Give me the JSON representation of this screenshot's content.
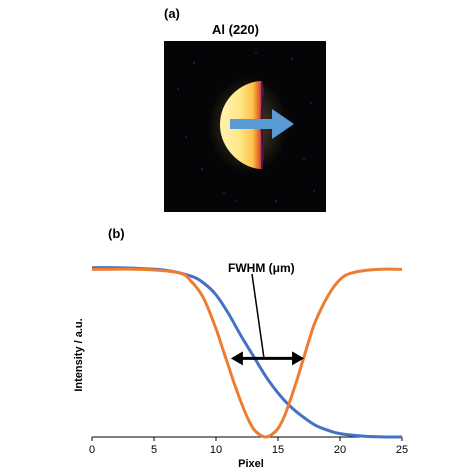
{
  "figure": {
    "panel_a_label": "(a)",
    "panel_b_label": "(b)",
    "image_title": "Al (220)"
  },
  "colors": {
    "orange": "#ed7d31",
    "blue": "#4472c4",
    "arrow_blue": "#5b9bd5",
    "image_bg": "#050507"
  },
  "chart_data": {
    "type": "line",
    "xlabel": "Pixel",
    "ylabel": "Intensity / a.u.",
    "xlim": [
      0,
      25
    ],
    "ylim": [
      0,
      1
    ],
    "xticks": [
      0,
      5,
      10,
      15,
      20,
      25
    ],
    "annotation": "FWHM (μm)",
    "series": [
      {
        "color": "#4472c4",
        "x": [
          0,
          2,
          4,
          6,
          8,
          9,
          10,
          11,
          12,
          13,
          14,
          15,
          16,
          17,
          18,
          19,
          20,
          22,
          24,
          25
        ],
        "y": [
          1.0,
          1.0,
          0.995,
          0.985,
          0.95,
          0.91,
          0.84,
          0.73,
          0.6,
          0.48,
          0.36,
          0.26,
          0.18,
          0.12,
          0.07,
          0.04,
          0.02,
          0.005,
          0.0,
          0.0
        ]
      },
      {
        "color": "#ed7d31",
        "x": [
          0,
          4,
          7,
          8,
          9,
          10,
          10.5,
          11,
          11.5,
          12,
          12.5,
          13,
          13.5,
          14,
          14.5,
          15,
          15.5,
          16,
          16.5,
          17,
          17.5,
          18,
          19,
          20,
          21,
          23,
          25
        ],
        "y": [
          0.99,
          0.99,
          0.97,
          0.92,
          0.82,
          0.64,
          0.53,
          0.42,
          0.31,
          0.21,
          0.12,
          0.05,
          0.015,
          0.0,
          0.015,
          0.05,
          0.12,
          0.22,
          0.33,
          0.45,
          0.57,
          0.68,
          0.83,
          0.93,
          0.97,
          0.99,
          0.99
        ]
      }
    ],
    "fwhm_arrow_x": [
      11.2,
      17.1
    ],
    "fwhm_arrow_y": 0.5
  }
}
